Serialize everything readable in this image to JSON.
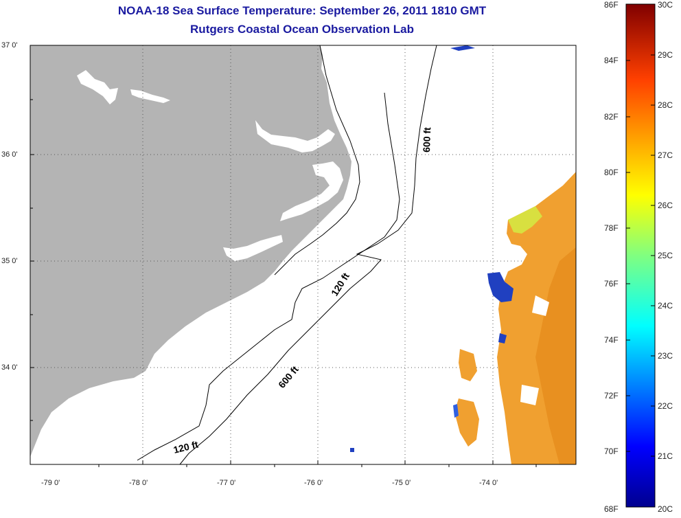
{
  "title": {
    "line1": "NOAA-18 Sea Surface Temperature:  September 26, 2011 1810 GMT",
    "line2": "Rutgers Coastal Ocean Observation Lab"
  },
  "axes": {
    "lat_labels": [
      "37 0'",
      "36 0'",
      "35 0'",
      "34 0'"
    ],
    "lon_labels": [
      "-79 0'",
      "-78 0'",
      "-77 0'",
      "-76 0'",
      "-75 0'",
      "-74 0'"
    ]
  },
  "contours": {
    "label_600_north": "600 ft",
    "label_600_south": "600 ft",
    "label_120_mid": "120 ft",
    "label_120_south": "120 ft"
  },
  "colorbar": {
    "fahrenheit": [
      "86F",
      "84F",
      "82F",
      "80F",
      "78F",
      "76F",
      "74F",
      "72F",
      "70F",
      "68F"
    ],
    "celsius": [
      "30C",
      "29C",
      "28C",
      "27C",
      "26C",
      "25C",
      "24C",
      "23C",
      "22C",
      "21C",
      "20C"
    ],
    "colors": [
      "#00008f",
      "#0000ff",
      "#0080ff",
      "#00ffff",
      "#80ff80",
      "#ffff00",
      "#ff8000",
      "#ff0000",
      "#800000"
    ]
  },
  "colors": {
    "land": "#b4b4b4",
    "title_text": "#1a1aa0",
    "sst_warm": "#f0a030",
    "sst_cool": "#2040c0"
  }
}
